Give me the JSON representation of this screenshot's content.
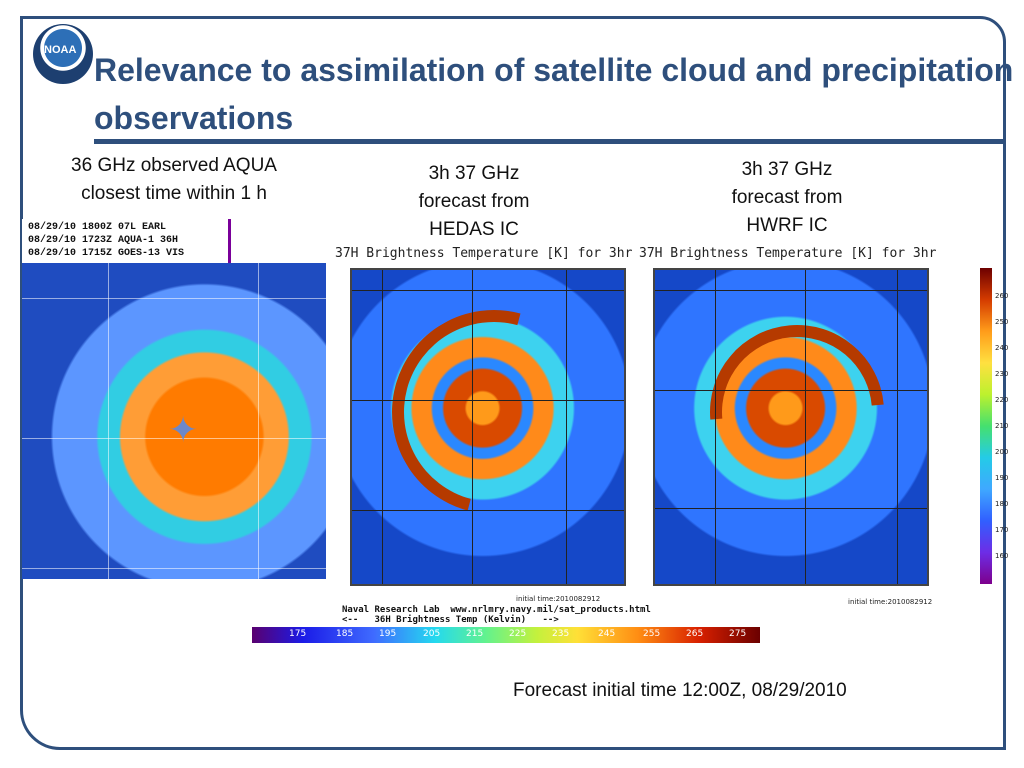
{
  "title": "Relevance to assimilation of satellite cloud and precipitation observations",
  "captions": {
    "left": "36 GHz observed AQUA\nclosest time within 1 h",
    "middle": "3h 37 GHz\nforecast from\nHEDAS IC",
    "right": "3h 37 GHz\nforecast from\nHWRF IC"
  },
  "sat_labels": [
    "08/29/10 1800Z 07L EARL",
    "08/29/10 1723Z AQUA-1 36H",
    "08/29/10 1715Z GOES-13 VIS"
  ],
  "brightness_titles": [
    "37H Brightness Temperature [K] for 3hr",
    "37H Brightness Temperature [K] for 3hr"
  ],
  "initial_time": "initial time:2010082912",
  "nrl_source": "Naval Research Lab  www.nrlmry.navy.mil/sat_products.html",
  "nrl_scale_label": "<--   36H Brightness Temp (Kelvin)   -->",
  "nrl_ticks": [
    "175",
    "185",
    "195",
    "205",
    "215",
    "225",
    "235",
    "245",
    "255",
    "265",
    "275"
  ],
  "vertical_scale_ticks": [
    "260",
    "250",
    "240",
    "230",
    "220",
    "210",
    "200",
    "190",
    "180",
    "170",
    "160"
  ],
  "footer": "Forecast initial time 12:00Z, 08/29/2010"
}
